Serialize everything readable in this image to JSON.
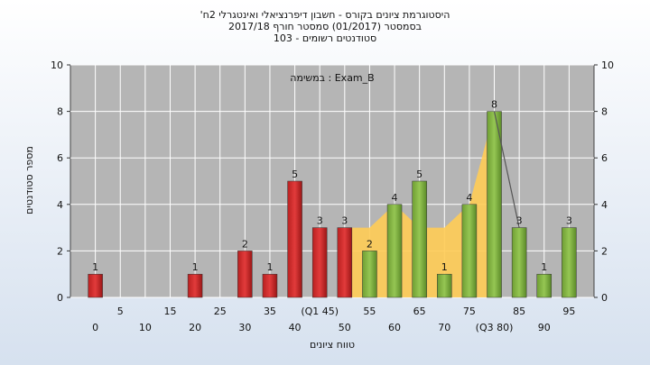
{
  "chart_data": {
    "type": "bar",
    "title_lines": [
      "'היסטוגרמת ציונים בקורס - חשבון דיפרנציאלי ואינטגרלי 2ח",
      "בסמסטר  (01/2017)  סמסטר חורף 2017/18",
      "סטודנטים רשומים - 103"
    ],
    "annotation": "במשימה : Exam_B",
    "xlabel": "טווח ציונים",
    "ylabel": "מספר סטודנטים",
    "ylim": [
      0,
      10
    ],
    "yticks": [
      0,
      2,
      4,
      6,
      8,
      10
    ],
    "grid": true,
    "x_ticks_row1": [
      "5",
      "15",
      "25",
      "35",
      "(Q1 45)",
      "55",
      "65",
      "75",
      "85",
      "95"
    ],
    "x_ticks_row2": [
      "0",
      "10",
      "20",
      "30",
      "40",
      "50",
      "60",
      "70",
      "(Q3 80)",
      "90"
    ],
    "bins": [
      0,
      5,
      10,
      15,
      20,
      25,
      30,
      35,
      40,
      45,
      50,
      55,
      60,
      65,
      70,
      75,
      80,
      85,
      90,
      95
    ],
    "values": [
      1,
      0,
      0,
      0,
      1,
      0,
      2,
      1,
      5,
      3,
      3,
      2,
      4,
      5,
      1,
      4,
      8,
      3,
      1,
      3
    ],
    "colors": {
      "fail": "#e23b3b",
      "pass": "#95c653",
      "area": "#ffcc55",
      "plot_bg": "#b5b5b5",
      "line": "#555555"
    },
    "pass_threshold": 55,
    "area_series": [
      {
        "x": 50,
        "y": 3
      },
      {
        "x": 55,
        "y": 3
      },
      {
        "x": 60,
        "y": 4
      },
      {
        "x": 65,
        "y": 3
      },
      {
        "x": 70,
        "y": 3
      },
      {
        "x": 75,
        "y": 4
      },
      {
        "x": 80,
        "y": 8
      }
    ],
    "trend_line": [
      {
        "x": 80,
        "y": 8
      },
      {
        "x": 85,
        "y": 3
      }
    ]
  }
}
